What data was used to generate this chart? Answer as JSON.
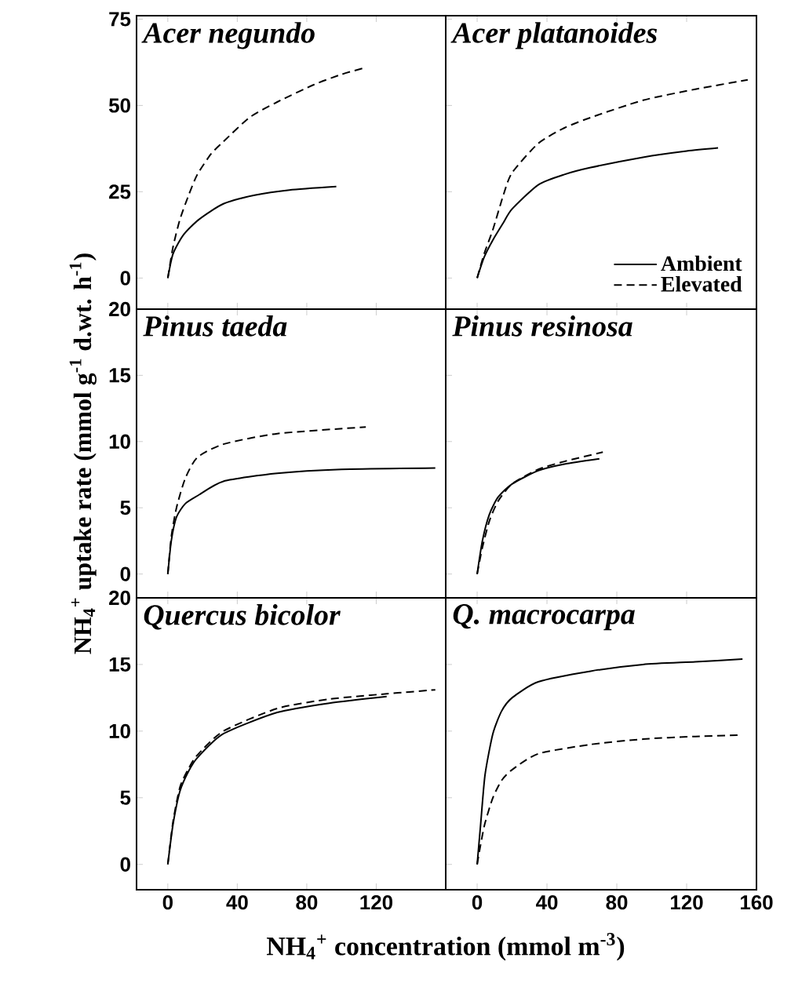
{
  "chart_data": [
    {
      "type": "line",
      "title": "Acer negundo",
      "xlim": [
        -18,
        160
      ],
      "ylim": [
        -9,
        76
      ],
      "xticks": [
        0,
        40,
        80,
        120
      ],
      "yticks": [
        0,
        25,
        50,
        75
      ],
      "tick_labels": "y",
      "series": [
        {
          "color": "#000000",
          "line_style": "solid",
          "x": [
            0,
            3,
            9,
            18,
            32,
            50,
            70,
            97
          ],
          "values": [
            0,
            7,
            12.5,
            17,
            21.5,
            24,
            25.5,
            26.5
          ]
        },
        {
          "color": "#000000",
          "line_style": "dashed",
          "x": [
            0,
            3,
            7,
            12,
            17,
            25,
            32,
            47,
            63,
            84,
            100,
            114
          ],
          "values": [
            0,
            9,
            17,
            24,
            30,
            36,
            39.5,
            46.5,
            51,
            56,
            59,
            61
          ]
        }
      ]
    },
    {
      "type": "line",
      "title": "Acer platanoides",
      "xlim": [
        -18,
        160
      ],
      "ylim": [
        -9,
        76
      ],
      "xticks": [
        0,
        40,
        80,
        120,
        160
      ],
      "yticks": [
        0,
        25,
        50,
        75
      ],
      "tick_labels": false,
      "legend": "bottom right",
      "series": [
        {
          "name": "Ambient",
          "color": "#000000",
          "line_style": "solid",
          "x": [
            0,
            4,
            9,
            15,
            20,
            35,
            50,
            65,
            95,
            120,
            138
          ],
          "values": [
            0,
            6,
            11,
            16,
            20,
            27,
            30,
            32,
            35,
            36.8,
            37.7
          ]
        },
        {
          "name": "Elevated",
          "color": "#000000",
          "line_style": "dashed",
          "x": [
            0,
            4,
            9,
            15,
            20,
            35,
            50,
            65,
            95,
            125,
            155
          ],
          "values": [
            0,
            7,
            14,
            24,
            30.5,
            39,
            43.5,
            46.5,
            51.5,
            54.7,
            57.4
          ]
        }
      ]
    },
    {
      "type": "line",
      "title": "Pinus taeda",
      "ylabel": "NH$_{4}$$^{+}$ uptake rate (mmol g$^{-1}$ d.wt. h$^{-1}$)",
      "xlim": [
        -18,
        160
      ],
      "ylim": [
        -1.8,
        20
      ],
      "xticks": [
        0,
        40,
        80,
        120
      ],
      "yticks": [
        0,
        5,
        10,
        15,
        20
      ],
      "tick_labels": "y",
      "series": [
        {
          "color": "#000000",
          "line_style": "solid",
          "x": [
            0,
            2,
            5,
            10,
            17,
            32,
            63,
            100,
            154
          ],
          "values": [
            0,
            2.5,
            4.3,
            5.3,
            5.9,
            7.0,
            7.6,
            7.9,
            8.0
          ]
        },
        {
          "color": "#000000",
          "line_style": "dashed",
          "x": [
            0,
            2,
            5,
            10,
            17,
            32,
            63,
            114
          ],
          "values": [
            0,
            2.8,
            5,
            7.2,
            8.8,
            9.8,
            10.6,
            11.1
          ]
        }
      ]
    },
    {
      "type": "line",
      "title": "Pinus resinosa",
      "xlim": [
        -18,
        160
      ],
      "ylim": [
        -1.8,
        20
      ],
      "xticks": [
        0,
        40,
        80,
        120,
        160
      ],
      "yticks": [
        0,
        5,
        10,
        15,
        20
      ],
      "tick_labels": false,
      "series": [
        {
          "color": "#000000",
          "line_style": "solid",
          "x": [
            0,
            3,
            7,
            12,
            20,
            35,
            50,
            70
          ],
          "values": [
            0,
            2.5,
            4.5,
            5.8,
            6.8,
            7.8,
            8.3,
            8.7
          ]
        },
        {
          "color": "#000000",
          "line_style": "dashed",
          "x": [
            0,
            3,
            7,
            12,
            20,
            35,
            50,
            72
          ],
          "values": [
            0,
            2,
            4,
            5.5,
            6.8,
            7.9,
            8.5,
            9.2
          ]
        }
      ]
    },
    {
      "type": "line",
      "title": "Quercus bicolor",
      "xlabel": "NH$_{4}$$^{+}$ concentration (mmol m$^{-3}$)",
      "xlim": [
        -18,
        160
      ],
      "ylim": [
        -1.9,
        20
      ],
      "xticks": [
        0,
        40,
        80,
        120
      ],
      "yticks": [
        0,
        5,
        10,
        15,
        20
      ],
      "series": [
        {
          "color": "#000000",
          "line_style": "solid",
          "x": [
            0,
            3,
            7,
            12,
            17,
            32,
            63,
            93,
            126
          ],
          "values": [
            0,
            3,
            5.5,
            7,
            8,
            9.8,
            11.4,
            12.1,
            12.6
          ]
        },
        {
          "color": "#000000",
          "line_style": "dashed",
          "x": [
            0,
            3,
            7,
            12,
            17,
            32,
            63,
            93,
            126,
            154
          ],
          "values": [
            0,
            3.2,
            5.8,
            7.2,
            8.2,
            10,
            11.7,
            12.4,
            12.8,
            13.1
          ]
        }
      ]
    },
    {
      "type": "line",
      "title": "Q. macrocarpa",
      "xlim": [
        -18,
        160
      ],
      "ylim": [
        -1.9,
        20
      ],
      "xticks": [
        0,
        40,
        80,
        120,
        160
      ],
      "yticks": [
        0,
        5,
        10,
        15,
        20
      ],
      "tick_labels": "x",
      "series": [
        {
          "color": "#000000",
          "line_style": "solid",
          "x": [
            0,
            2,
            4.5,
            9,
            14,
            20,
            35,
            65,
            95,
            125,
            152
          ],
          "values": [
            0,
            3,
            6.7,
            9.8,
            11.5,
            12.5,
            13.7,
            14.5,
            15,
            15.2,
            15.4
          ]
        },
        {
          "color": "#000000",
          "line_style": "dashed",
          "x": [
            0,
            2,
            4.5,
            9,
            14,
            20,
            35,
            65,
            95,
            125,
            150
          ],
          "values": [
            0,
            1.5,
            3.1,
            5,
            6.3,
            7.1,
            8.3,
            9,
            9.4,
            9.6,
            9.7
          ]
        }
      ]
    }
  ]
}
